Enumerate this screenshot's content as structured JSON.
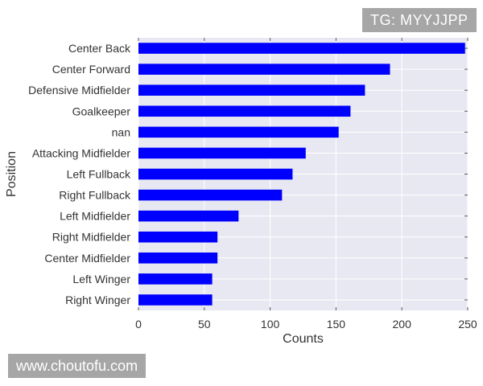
{
  "watermark_top": "TG: MYYJJPP",
  "watermark_bottom": "www.choutofu.com",
  "chart_data": {
    "type": "bar",
    "orientation": "horizontal",
    "title": "",
    "xlabel": "Counts",
    "ylabel": "Position",
    "xlim": [
      0,
      250
    ],
    "xticks": [
      0,
      50,
      100,
      150,
      200,
      250
    ],
    "grid": true,
    "bar_color": "#0000ff",
    "background_color": "#e8e8f2",
    "categories": [
      "Center Back",
      "Center Forward",
      "Defensive Midfielder",
      "Goalkeeper",
      "nan",
      "Attacking Midfielder",
      "Left Fullback",
      "Right Fullback",
      "Left Midfielder",
      "Right Midfielder",
      "Center Midfielder",
      "Left Winger",
      "Right Winger"
    ],
    "values": [
      248,
      191,
      172,
      161,
      152,
      127,
      117,
      109,
      76,
      60,
      60,
      56,
      56
    ]
  }
}
